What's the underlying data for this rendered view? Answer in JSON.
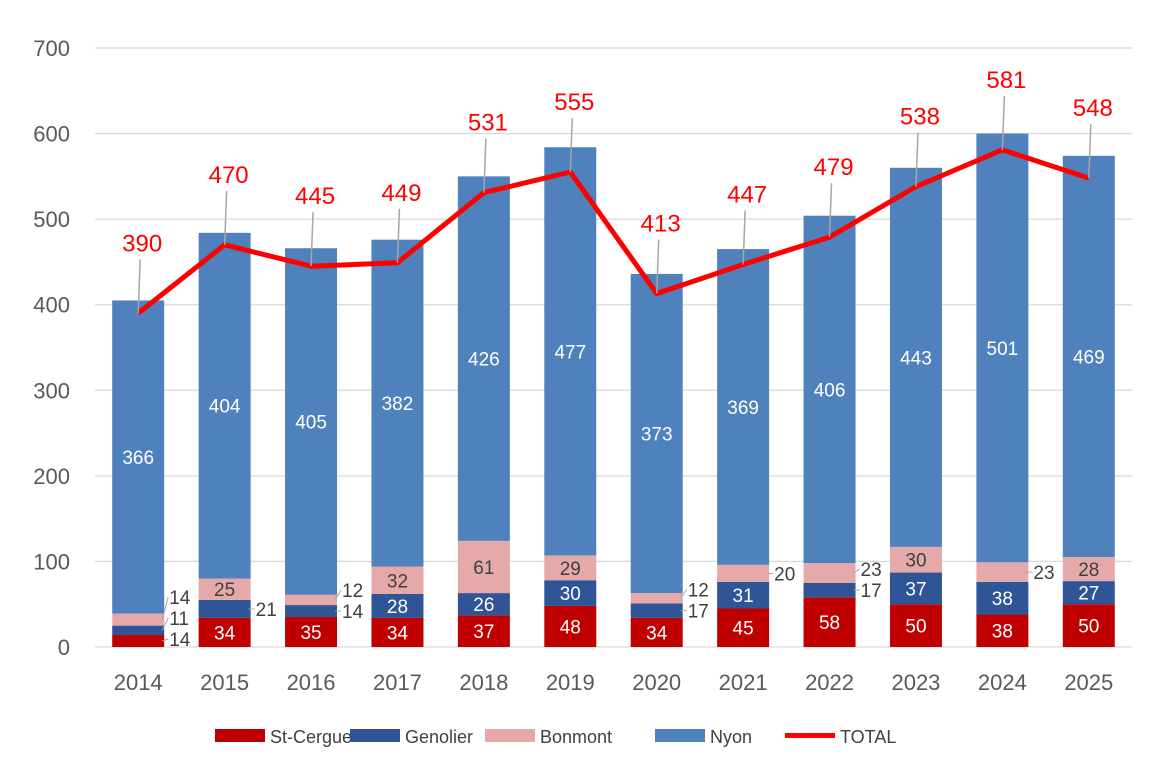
{
  "chart_data": {
    "type": "bar",
    "stacked": true,
    "categories": [
      "2014",
      "2015",
      "2016",
      "2017",
      "2018",
      "2019",
      "2020",
      "2021",
      "2022",
      "2023",
      "2024",
      "2025"
    ],
    "series": [
      {
        "name": "St-Cergue",
        "kind": "bar",
        "color": "#C00000",
        "label_color": "#FFFFFF",
        "values": [
          14,
          34,
          35,
          34,
          37,
          48,
          34,
          45,
          58,
          50,
          38,
          50
        ]
      },
      {
        "name": "Genolier",
        "kind": "bar",
        "color": "#2F5597",
        "label_color": "#FFFFFF",
        "values": [
          11,
          21,
          14,
          28,
          26,
          30,
          17,
          31,
          17,
          37,
          38,
          27
        ]
      },
      {
        "name": "Bonmont",
        "kind": "bar",
        "color": "#E6A9A9",
        "label_color": "#404040",
        "values": [
          14,
          25,
          12,
          32,
          61,
          29,
          12,
          20,
          23,
          30,
          23,
          28
        ]
      },
      {
        "name": "Nyon",
        "kind": "bar",
        "color": "#4F81BD",
        "label_color": "#FFFFFF",
        "values": [
          366,
          404,
          405,
          382,
          426,
          477,
          373,
          369,
          406,
          443,
          501,
          469
        ]
      },
      {
        "name": "TOTAL",
        "kind": "line",
        "color": "#FF0000",
        "label_color": "#FF0000",
        "values": [
          390,
          470,
          445,
          449,
          531,
          555,
          413,
          447,
          479,
          538,
          581,
          548
        ]
      }
    ],
    "ylim": [
      0,
      700
    ],
    "yticks": [
      0,
      100,
      200,
      300,
      400,
      500,
      600,
      700
    ],
    "grid": true,
    "legend": "bottom",
    "title": "",
    "xlabel": "",
    "ylabel": ""
  }
}
